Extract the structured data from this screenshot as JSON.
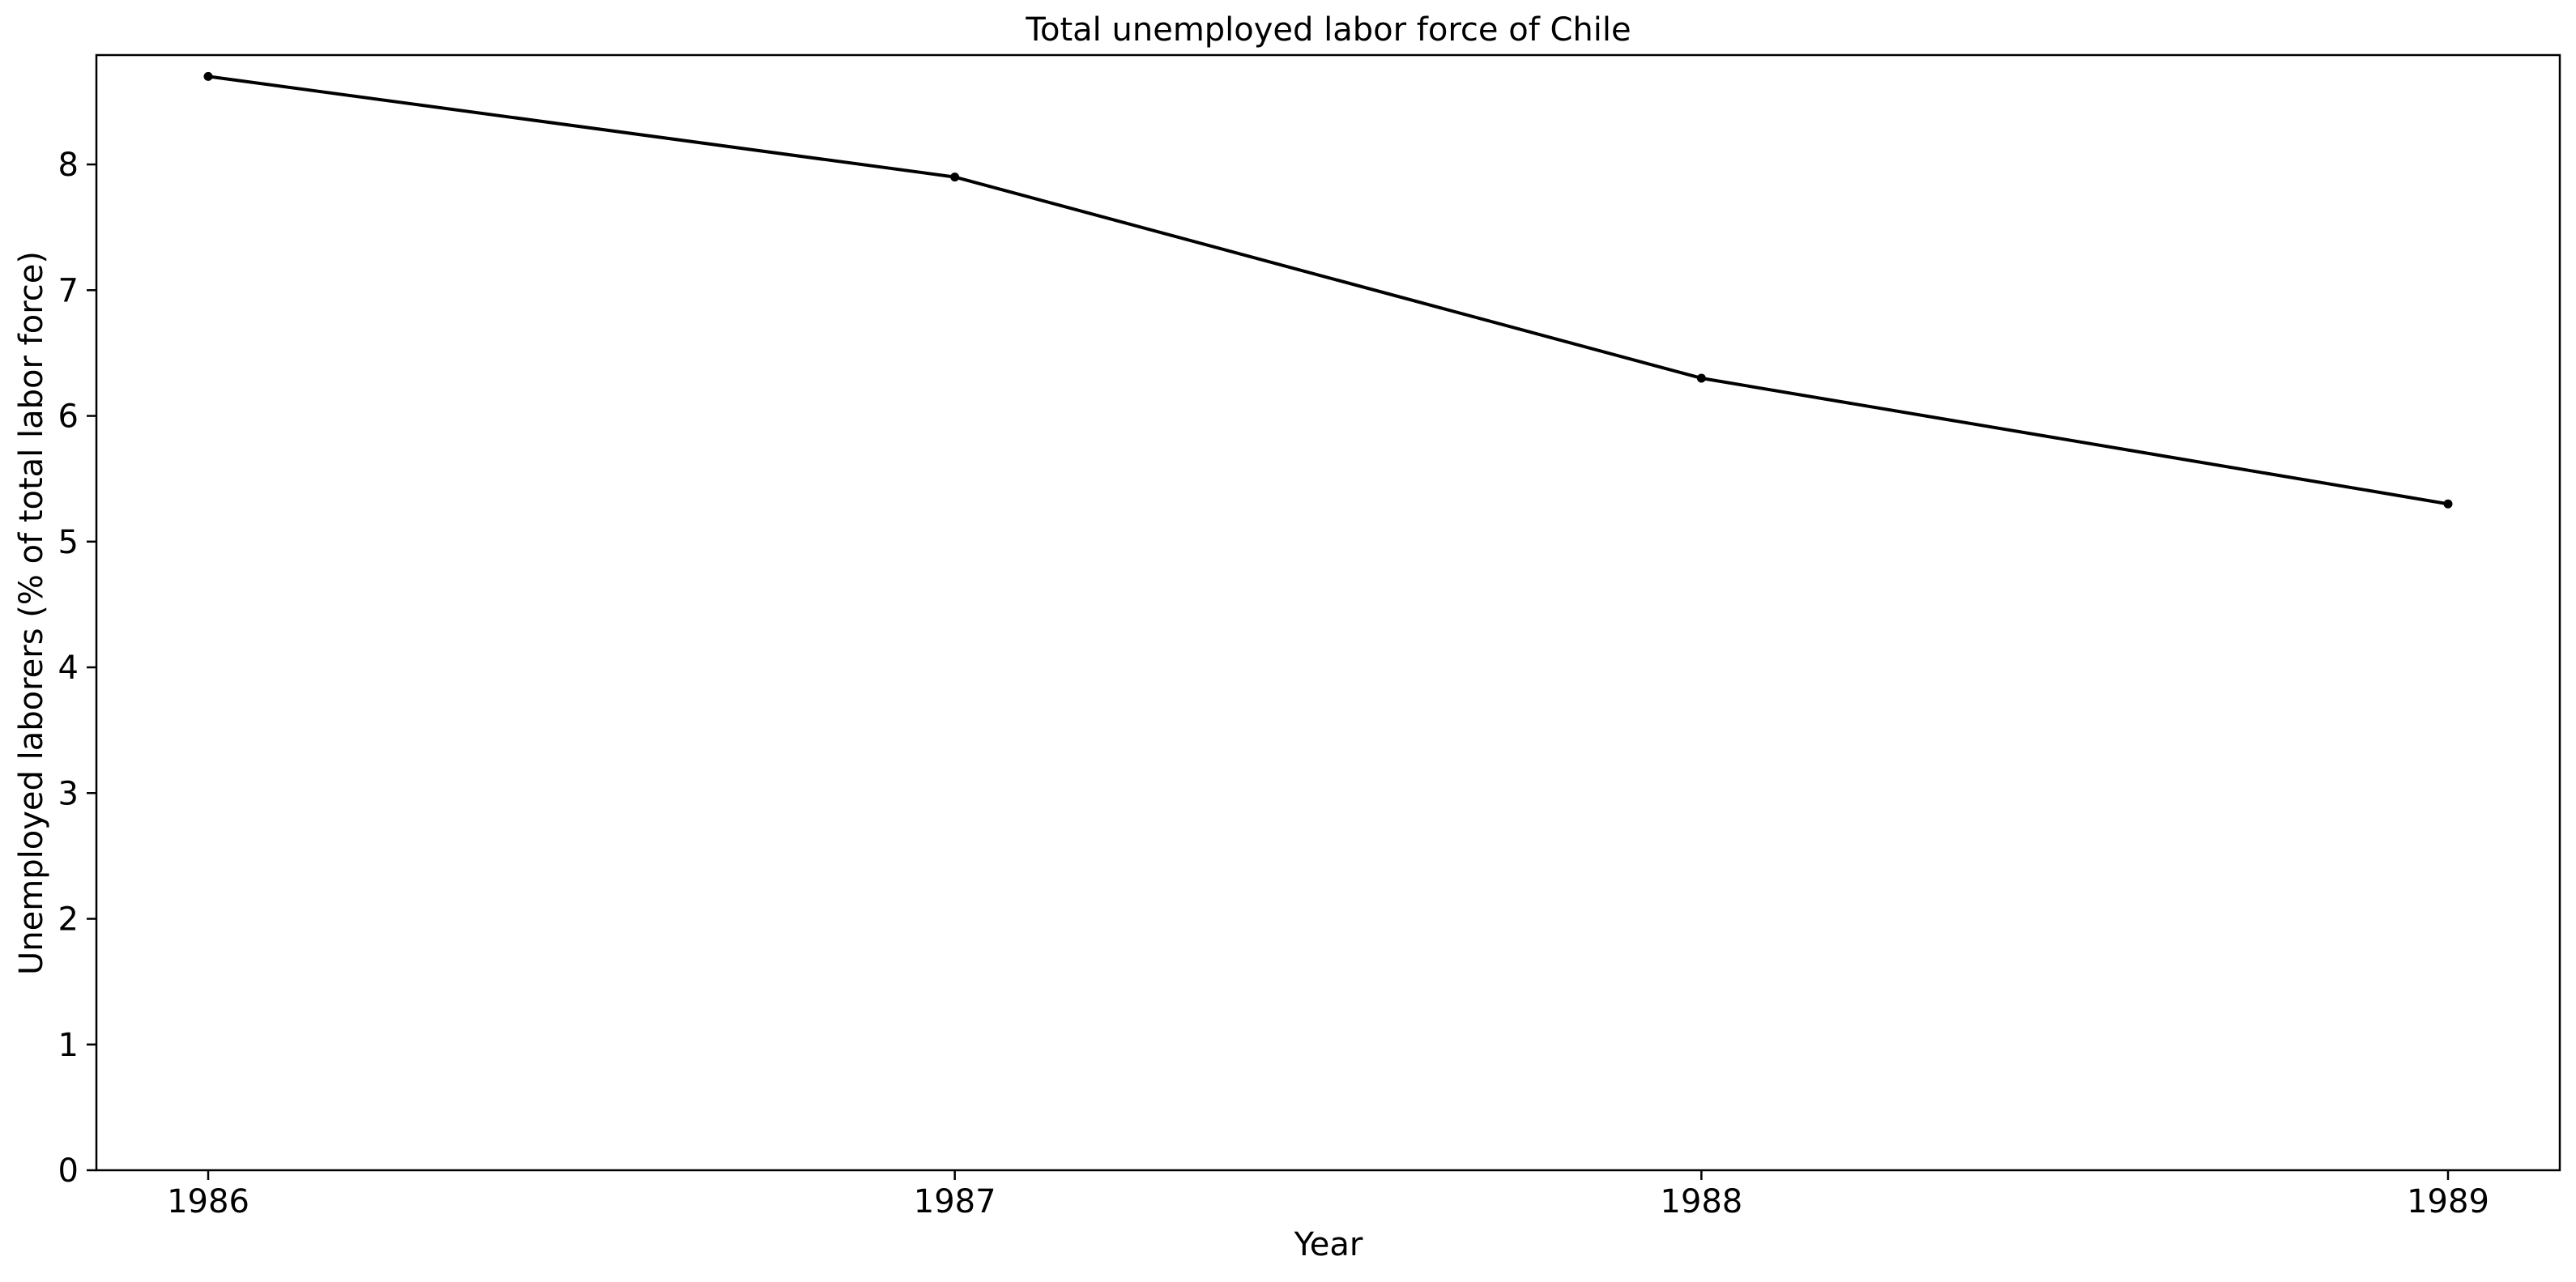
{
  "chart_data": {
    "type": "line",
    "title": "Total unemployed labor force of Chile",
    "xlabel": "Year",
    "ylabel": "Unemployed laborers (% of total labor force)",
    "x": [
      "1986",
      "1987",
      "1988",
      "1989"
    ],
    "series": [
      {
        "values": [
          8.7,
          7.9,
          6.3,
          5.3
        ]
      }
    ],
    "ylim": [
      0,
      8.87
    ],
    "yticks": [
      0,
      1,
      2,
      3,
      4,
      5,
      6,
      7,
      8
    ],
    "grid": false,
    "line_color": "#000000",
    "marker": "dot"
  }
}
